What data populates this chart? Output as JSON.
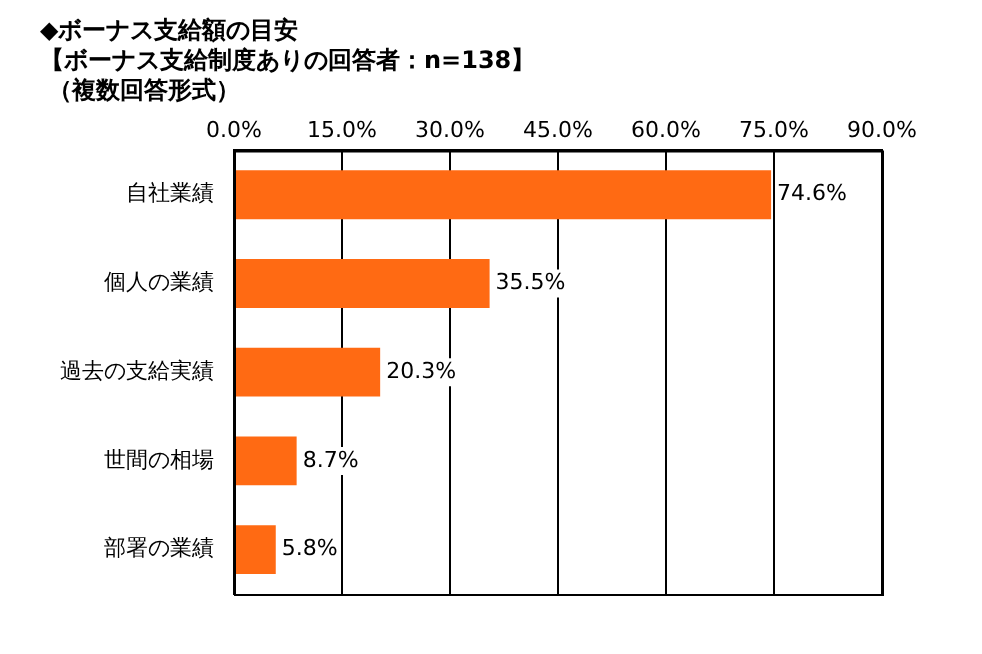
{
  "chart_data": {
    "type": "bar",
    "orientation": "horizontal",
    "title": "◆ボーナス支給額の目安",
    "subtitle": "【ボーナス支給制度ありの回答者：n=138】",
    "annotations": [
      "（複数回答形式）"
    ],
    "categories": [
      "自社業績",
      "個人の業績",
      "過去の支給実績",
      "世間の相場",
      "部署の業績"
    ],
    "values": [
      74.6,
      35.5,
      20.3,
      8.7,
      5.8
    ],
    "value_labels": [
      "74.6%",
      "35.5%",
      "20.3%",
      "8.7%",
      "5.8%"
    ],
    "color": "#ff6a13",
    "xlim": [
      0,
      90
    ],
    "xticks": [
      {
        "value": 0,
        "label": "0.0%"
      },
      {
        "value": 15,
        "label": "15.0%"
      },
      {
        "value": 30,
        "label": "30.0%"
      },
      {
        "value": 45,
        "label": "45.0%"
      },
      {
        "value": 60,
        "label": "60.0%"
      },
      {
        "value": 75,
        "label": "75.0%"
      },
      {
        "value": 90,
        "label": "90.0%"
      }
    ],
    "grid": "x"
  }
}
